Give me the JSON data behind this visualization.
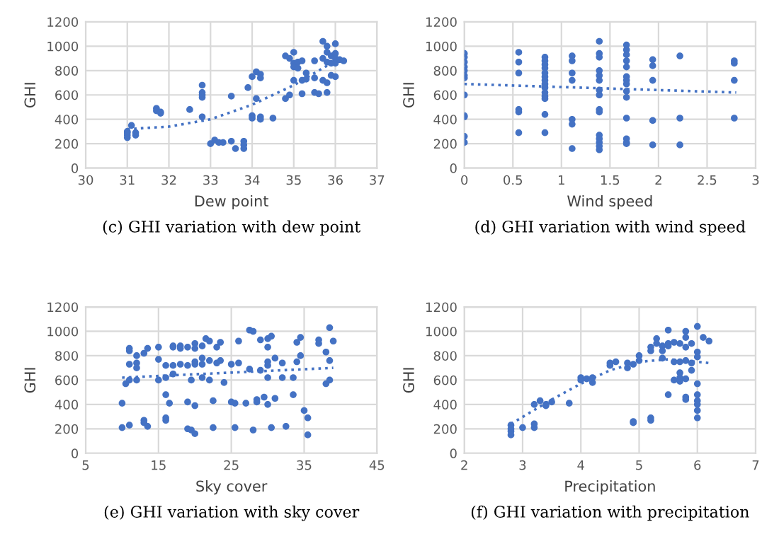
{
  "chart_data": [
    {
      "type": "scatter",
      "title": "(c) GHI variation with dew point",
      "xlabel": "Dew point",
      "ylabel": "GHI",
      "xlim": [
        30,
        37
      ],
      "xticks": [
        30,
        31,
        32,
        33,
        34,
        35,
        36,
        37
      ],
      "ylim": [
        0,
        1200
      ],
      "yticks": [
        0,
        200,
        400,
        600,
        800,
        1000,
        1200
      ],
      "grid": true,
      "legend": false,
      "marker": "circle",
      "series": [
        {
          "color": "#4472c4",
          "x": [
            31.0,
            31.0,
            31.0,
            31.0,
            31.1,
            31.2,
            31.2,
            31.7,
            31.7,
            31.8,
            31.8,
            32.5,
            32.8,
            32.8,
            32.8,
            32.8,
            32.8,
            33.0,
            33.1,
            33.2,
            33.3,
            33.5,
            33.5,
            33.6,
            33.8,
            33.8,
            33.8,
            33.9,
            34.0,
            34.0,
            34.0,
            34.1,
            34.1,
            34.2,
            34.2,
            34.2,
            34.2,
            34.5,
            34.8,
            34.8,
            34.9,
            34.9,
            35.0,
            35.0,
            35.0,
            35.0,
            35.1,
            35.1,
            35.2,
            35.2,
            35.2,
            35.3,
            35.3,
            35.5,
            35.5,
            35.5,
            35.6,
            35.7,
            35.7,
            35.7,
            35.8,
            35.8,
            35.8,
            35.8,
            35.8,
            35.9,
            35.9,
            35.9,
            36.0,
            36.0,
            36.0,
            36.0,
            36.0,
            36.1,
            36.2
          ],
          "values": [
            250,
            270,
            290,
            300,
            350,
            270,
            290,
            490,
            470,
            460,
            450,
            480,
            680,
            620,
            600,
            580,
            420,
            200,
            230,
            210,
            210,
            220,
            590,
            160,
            220,
            190,
            160,
            660,
            750,
            430,
            410,
            790,
            570,
            770,
            740,
            420,
            400,
            410,
            920,
            570,
            900,
            600,
            950,
            860,
            830,
            720,
            870,
            820,
            880,
            720,
            610,
            780,
            730,
            880,
            740,
            620,
            610,
            1040,
            900,
            720,
            1000,
            950,
            870,
            700,
            620,
            920,
            860,
            760,
            1020,
            940,
            900,
            860,
            750,
            890,
            880
          ]
        },
        {
          "type": "line",
          "color": "#4472c4",
          "line_style": "dotted",
          "marker": "none",
          "x": [
            31,
            32,
            33,
            34,
            35,
            36
          ],
          "values": [
            320,
            340,
            400,
            520,
            680,
            880
          ]
        }
      ]
    },
    {
      "type": "scatter",
      "title": "(d) GHI variation with wind speed",
      "xlabel": "Wind speed",
      "ylabel": "GHI",
      "xlim": [
        0,
        3
      ],
      "xticks": [
        0,
        0.5,
        1,
        1.5,
        2,
        2.5,
        3
      ],
      "ylim": [
        0,
        1200
      ],
      "yticks": [
        0,
        200,
        400,
        600,
        800,
        1000,
        1200
      ],
      "grid": true,
      "legend": false,
      "marker": "circle",
      "series": [
        {
          "color": "#4472c4",
          "x": [
            0,
            0,
            0,
            0,
            0,
            0,
            0,
            0,
            0,
            0,
            0,
            0,
            0.56,
            0.56,
            0.56,
            0.56,
            0.56,
            0.56,
            0.83,
            0.83,
            0.83,
            0.83,
            0.83,
            0.83,
            0.83,
            0.83,
            0.83,
            0.83,
            0.83,
            0.83,
            0.83,
            0.83,
            1.11,
            1.11,
            1.11,
            1.11,
            1.11,
            1.11,
            1.11,
            1.39,
            1.39,
            1.39,
            1.39,
            1.39,
            1.39,
            1.39,
            1.39,
            1.39,
            1.39,
            1.39,
            1.39,
            1.39,
            1.39,
            1.39,
            1.67,
            1.67,
            1.67,
            1.67,
            1.67,
            1.67,
            1.67,
            1.67,
            1.67,
            1.67,
            1.67,
            1.67,
            1.67,
            1.67,
            1.94,
            1.94,
            1.94,
            1.94,
            1.94,
            2.22,
            2.22,
            2.22,
            2.78,
            2.78,
            2.78,
            2.78
          ],
          "values": [
            940,
            910,
            870,
            830,
            800,
            760,
            740,
            600,
            430,
            420,
            260,
            210,
            950,
            870,
            780,
            480,
            460,
            290,
            910,
            880,
            850,
            820,
            780,
            750,
            720,
            690,
            660,
            620,
            590,
            570,
            440,
            290,
            920,
            880,
            780,
            720,
            400,
            360,
            160,
            1040,
            940,
            910,
            800,
            760,
            720,
            640,
            600,
            480,
            460,
            270,
            240,
            210,
            180,
            150,
            1010,
            970,
            930,
            880,
            830,
            750,
            720,
            690,
            630,
            580,
            410,
            240,
            210,
            200,
            890,
            840,
            720,
            390,
            190,
            920,
            410,
            190,
            880,
            860,
            720,
            410
          ]
        },
        {
          "type": "line",
          "color": "#4472c4",
          "line_style": "dotted",
          "marker": "none",
          "x": [
            0,
            2.8
          ],
          "values": [
            690,
            620
          ]
        }
      ]
    },
    {
      "type": "scatter",
      "title": "(e) GHI variation with sky cover",
      "xlabel": "Sky cover",
      "ylabel": "GHI",
      "xlim": [
        5,
        45
      ],
      "xticks": [
        5,
        15,
        25,
        35,
        45
      ],
      "ylim": [
        0,
        1200
      ],
      "yticks": [
        0,
        200,
        400,
        600,
        800,
        1000,
        1200
      ],
      "grid": true,
      "legend": false,
      "marker": "circle",
      "series": [
        {
          "color": "#4472c4",
          "x": [
            10,
            10,
            10.5,
            11,
            11,
            11,
            11,
            11,
            12,
            12,
            12,
            12,
            13,
            13,
            13,
            13.5,
            13.5,
            15,
            15,
            15,
            16,
            16,
            16,
            16,
            16,
            16.5,
            17,
            17,
            17,
            17,
            18,
            18,
            18,
            19,
            19,
            19,
            19,
            19.5,
            19.5,
            20,
            20,
            20,
            20,
            20,
            20,
            21,
            21,
            21,
            21,
            21.5,
            22,
            22,
            22,
            22.5,
            22.5,
            23,
            23,
            23.5,
            23.5,
            24,
            25,
            25,
            25.5,
            25.5,
            26,
            26,
            27,
            27.5,
            27.5,
            28,
            28,
            28.5,
            28.5,
            29,
            29,
            29.5,
            30,
            30,
            30,
            30,
            30,
            30,
            30.5,
            30.5,
            31,
            31,
            32,
            32,
            32.5,
            33.5,
            33.5,
            34,
            34,
            34.5,
            34.5,
            35,
            35.5,
            35.5,
            37,
            37,
            38,
            38,
            38.5,
            38.5,
            38.5,
            39
          ],
          "values": [
            410,
            210,
            570,
            860,
            840,
            730,
            600,
            230,
            800,
            740,
            700,
            600,
            270,
            250,
            820,
            220,
            860,
            770,
            600,
            870,
            480,
            720,
            620,
            290,
            270,
            410,
            880,
            870,
            720,
            650,
            880,
            860,
            730,
            870,
            720,
            420,
            200,
            600,
            190,
            900,
            860,
            750,
            730,
            390,
            160,
            880,
            780,
            730,
            620,
            940,
            760,
            600,
            920,
            430,
            210,
            870,
            740,
            910,
            760,
            580,
            730,
            420,
            410,
            210,
            920,
            740,
            410,
            1010,
            690,
            1000,
            190,
            440,
            420,
            930,
            680,
            460,
            940,
            870,
            750,
            720,
            620,
            400,
            960,
            210,
            780,
            450,
            740,
            620,
            220,
            620,
            480,
            910,
            750,
            950,
            800,
            350,
            290,
            150,
            930,
            900,
            830,
            570,
            1030,
            760,
            600,
            920
          ]
        },
        {
          "type": "line",
          "color": "#4472c4",
          "line_style": "dotted",
          "marker": "none",
          "x": [
            10,
            39
          ],
          "values": [
            620,
            700
          ]
        }
      ]
    },
    {
      "type": "scatter",
      "title": "(f) GHI variation with precipitation",
      "xlabel": "Precipitation",
      "ylabel": "GHI",
      "xlim": [
        2,
        7
      ],
      "xticks": [
        2,
        3,
        4,
        5,
        6,
        7
      ],
      "ylim": [
        0,
        1200
      ],
      "yticks": [
        0,
        200,
        400,
        600,
        800,
        1000,
        1200
      ],
      "grid": true,
      "legend": false,
      "marker": "circle",
      "series": [
        {
          "color": "#4472c4",
          "x": [
            2.8,
            2.8,
            2.8,
            2.8,
            3.0,
            3.2,
            3.2,
            3.2,
            3.3,
            3.4,
            3.4,
            3.5,
            3.8,
            4.0,
            4.0,
            4.1,
            4.2,
            4.2,
            4.5,
            4.5,
            4.6,
            4.8,
            4.8,
            4.9,
            4.9,
            4.9,
            5.0,
            5.0,
            5.2,
            5.2,
            5.2,
            5.2,
            5.3,
            5.3,
            5.4,
            5.4,
            5.4,
            5.5,
            5.5,
            5.5,
            5.5,
            5.6,
            5.6,
            5.6,
            5.7,
            5.7,
            5.7,
            5.7,
            5.7,
            5.8,
            5.8,
            5.8,
            5.8,
            5.8,
            5.8,
            5.8,
            5.9,
            5.9,
            5.9,
            6.0,
            6.0,
            6.0,
            6.0,
            6.0,
            6.0,
            6.0,
            6.0,
            6.0,
            6.1,
            6.2
          ],
          "values": [
            230,
            200,
            180,
            150,
            210,
            400,
            240,
            210,
            430,
            400,
            390,
            420,
            410,
            620,
            600,
            610,
            620,
            580,
            740,
            720,
            750,
            740,
            700,
            730,
            260,
            250,
            800,
            760,
            870,
            840,
            290,
            270,
            940,
            900,
            880,
            840,
            780,
            1010,
            900,
            880,
            480,
            910,
            750,
            600,
            900,
            750,
            660,
            620,
            590,
            1000,
            950,
            870,
            760,
            610,
            460,
            440,
            900,
            740,
            680,
            1040,
            830,
            790,
            570,
            480,
            430,
            400,
            350,
            290,
            950,
            920
          ]
        },
        {
          "type": "line",
          "color": "#4472c4",
          "line_style": "dotted",
          "marker": "none",
          "x": [
            2.8,
            3.5,
            4,
            4.5,
            5,
            5.5,
            6,
            6.2
          ],
          "values": [
            240,
            440,
            570,
            680,
            750,
            770,
            750,
            740
          ]
        }
      ]
    }
  ]
}
